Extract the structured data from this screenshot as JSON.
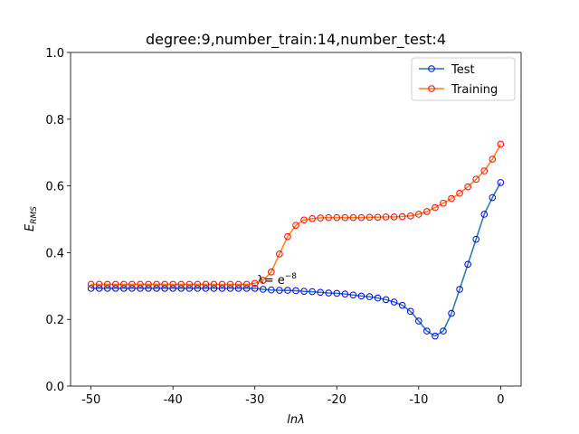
{
  "chart_data": {
    "type": "line",
    "title": "degree:9,number_train:14,number_test:4",
    "x_label": "lnλ",
    "y_label": {
      "main": "E",
      "sub": "RMS"
    },
    "annotation": {
      "text": "λ= e",
      "sup": "−8"
    },
    "x": [
      -50,
      -49,
      -48,
      -47,
      -46,
      -45,
      -44,
      -43,
      -42,
      -41,
      -40,
      -39,
      -38,
      -37,
      -36,
      -35,
      -34,
      -33,
      -32,
      -31,
      -30,
      -29,
      -28,
      -27,
      -26,
      -25,
      -24,
      -23,
      -22,
      -21,
      -20,
      -19,
      -18,
      -17,
      -16,
      -15,
      -14,
      -13,
      -12,
      -11,
      -10,
      -9,
      -8,
      -7,
      -6,
      -5,
      -4,
      -3,
      -2,
      -1,
      0
    ],
    "series": [
      {
        "name": "Test",
        "color": "#1f77b4",
        "marker_color": "#0000ff",
        "values": [
          0.293,
          0.293,
          0.293,
          0.293,
          0.293,
          0.293,
          0.293,
          0.293,
          0.293,
          0.293,
          0.293,
          0.293,
          0.293,
          0.293,
          0.293,
          0.293,
          0.293,
          0.293,
          0.293,
          0.293,
          0.293,
          0.29,
          0.288,
          0.287,
          0.287,
          0.286,
          0.284,
          0.283,
          0.281,
          0.279,
          0.278,
          0.276,
          0.273,
          0.27,
          0.268,
          0.264,
          0.259,
          0.252,
          0.242,
          0.224,
          0.195,
          0.165,
          0.15,
          0.165,
          0.218,
          0.29,
          0.365,
          0.44,
          0.515,
          0.565,
          0.61
        ]
      },
      {
        "name": "Training",
        "color": "#ff7f0e",
        "marker_color": "#ff0000",
        "values": [
          0.305,
          0.305,
          0.305,
          0.305,
          0.305,
          0.305,
          0.305,
          0.305,
          0.305,
          0.305,
          0.305,
          0.305,
          0.305,
          0.305,
          0.305,
          0.305,
          0.305,
          0.305,
          0.305,
          0.305,
          0.308,
          0.317,
          0.342,
          0.396,
          0.448,
          0.482,
          0.498,
          0.502,
          0.504,
          0.505,
          0.505,
          0.505,
          0.505,
          0.505,
          0.506,
          0.506,
          0.507,
          0.507,
          0.508,
          0.51,
          0.515,
          0.523,
          0.535,
          0.548,
          0.562,
          0.578,
          0.597,
          0.62,
          0.645,
          0.68,
          0.725
        ]
      }
    ],
    "xlim": [
      -52.5,
      2.5
    ],
    "ylim": [
      0,
      1
    ],
    "xticks": [
      -50,
      -40,
      -30,
      -20,
      -10,
      0
    ],
    "yticks": [
      {
        "value": 0,
        "label": "0.0"
      },
      {
        "value": 0.2,
        "label": "0.2"
      },
      {
        "value": 0.4,
        "label": "0.4"
      },
      {
        "value": 0.6,
        "label": "0.6"
      },
      {
        "value": 0.8,
        "label": "0.8"
      },
      {
        "value": 1,
        "label": "1.0"
      }
    ],
    "grid": false,
    "legend": "upper right"
  }
}
